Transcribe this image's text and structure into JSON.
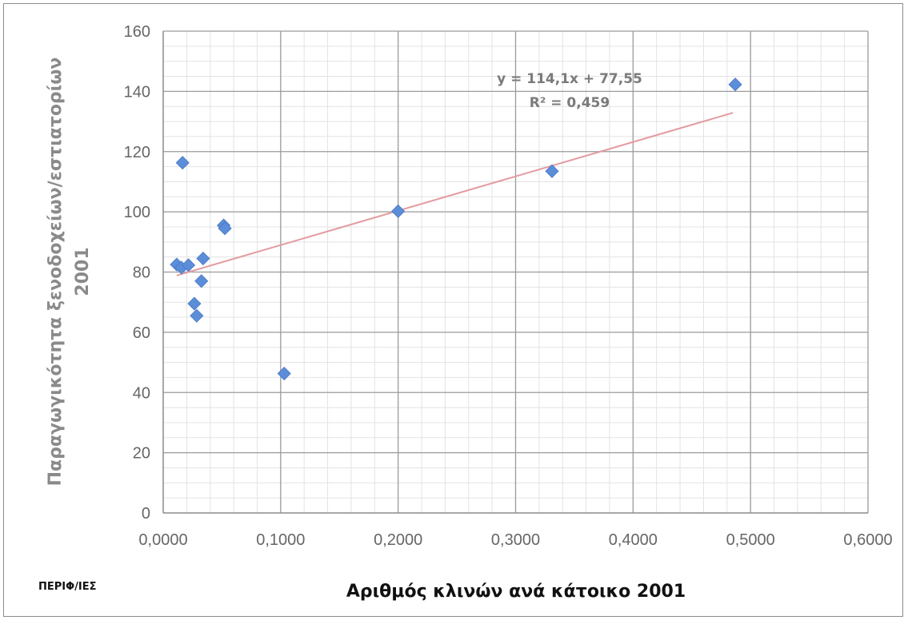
{
  "chart_data": {
    "type": "scatter",
    "title": "",
    "xlabel": "Αριθμός κλινών ανά κάτοικο 2001",
    "ylabel_lines": [
      "Παραγωγικότητα ξενοδοχείων/εστιατορίων",
      "2001"
    ],
    "corner_label": "ΠΕΡΙΦ/ΙΕΣ",
    "xlim": [
      0,
      0.6
    ],
    "ylim": [
      0,
      160
    ],
    "x_ticks": [
      "0,0000",
      "0,1000",
      "0,2000",
      "0,3000",
      "0,4000",
      "0,5000",
      "0,6000"
    ],
    "y_ticks": [
      "0",
      "20",
      "40",
      "60",
      "80",
      "100",
      "120",
      "140",
      "160"
    ],
    "grid": true,
    "series": [
      {
        "marker_color": "#5b8dd9",
        "points": [
          {
            "x": 0.0115,
            "y": 82.5
          },
          {
            "x": 0.0155,
            "y": 81.5
          },
          {
            "x": 0.0215,
            "y": 82.3
          },
          {
            "x": 0.0165,
            "y": 116.3
          },
          {
            "x": 0.0265,
            "y": 69.5
          },
          {
            "x": 0.0285,
            "y": 65.5
          },
          {
            "x": 0.0325,
            "y": 77.0
          },
          {
            "x": 0.034,
            "y": 84.5
          },
          {
            "x": 0.0515,
            "y": 95.5
          },
          {
            "x": 0.0525,
            "y": 94.5
          },
          {
            "x": 0.103,
            "y": 46.3
          },
          {
            "x": 0.2,
            "y": 100.2
          },
          {
            "x": 0.331,
            "y": 113.5
          },
          {
            "x": 0.487,
            "y": 142.3
          }
        ]
      }
    ],
    "trendline": {
      "slope": 114.1,
      "intercept": 77.55,
      "x_range": [
        0.0115,
        0.485
      ],
      "color": "#e39ba0",
      "equation": "y = 114,1x + 77,55",
      "r_squared": "R² = 0,459"
    }
  }
}
